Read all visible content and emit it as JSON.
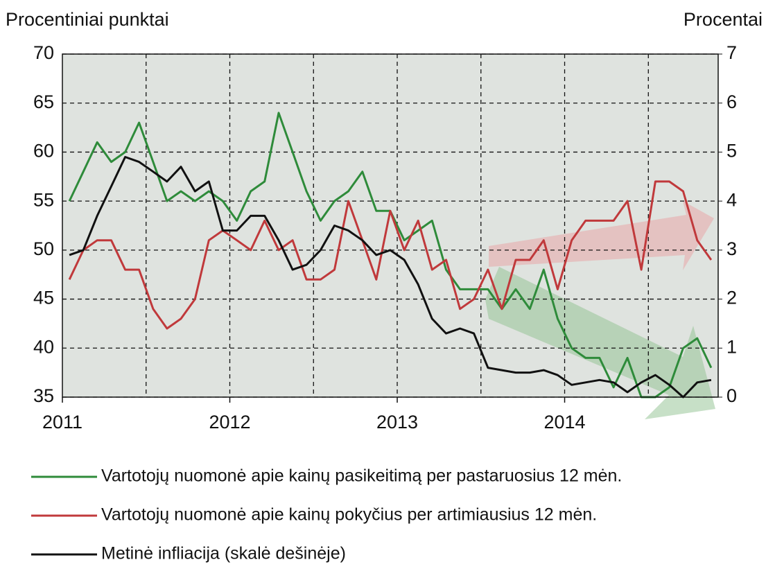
{
  "chart_data": {
    "type": "line",
    "y_label": "Procentiniai punktai",
    "y2_label": "Procentai",
    "x": [
      2011.042,
      2011.125,
      2011.208,
      2011.292,
      2011.375,
      2011.458,
      2011.542,
      2011.625,
      2011.708,
      2011.792,
      2011.875,
      2011.958,
      2012.042,
      2012.125,
      2012.208,
      2012.292,
      2012.375,
      2012.458,
      2012.542,
      2012.625,
      2012.708,
      2012.792,
      2012.875,
      2012.958,
      2013.042,
      2013.125,
      2013.208,
      2013.292,
      2013.375,
      2013.458,
      2013.542,
      2013.625,
      2013.708,
      2013.792,
      2013.875,
      2013.958,
      2014.042,
      2014.125,
      2014.208,
      2014.292,
      2014.375,
      2014.458,
      2014.542,
      2014.625,
      2014.708,
      2014.792,
      2014.875
    ],
    "series": [
      {
        "name": "Vartotojų nuomonė apie kainų pasikeitimą per pastaruosius 12 mėn.",
        "color": "#2e8b3a",
        "values": [
          55,
          58,
          61,
          59,
          60,
          63,
          59,
          55,
          56,
          55,
          56,
          55,
          53,
          56,
          57,
          64,
          60,
          56,
          53,
          55,
          56,
          58,
          54,
          54,
          51,
          52,
          53,
          48,
          46,
          46,
          46,
          44,
          46,
          44,
          48,
          43,
          40,
          39,
          39,
          36,
          39,
          35,
          35,
          36,
          40,
          41,
          38
        ]
      },
      {
        "name": "Vartotojų nuomonė apie kainų pokyčius per artimiausius 12 mėn.",
        "color": "#c0393b",
        "values": [
          47,
          50,
          51,
          51,
          48,
          48,
          44,
          42,
          43,
          45,
          51,
          52,
          51,
          50,
          53,
          50,
          51,
          47,
          47,
          48,
          55,
          51,
          47,
          54,
          50,
          53,
          48,
          49,
          44,
          45,
          48,
          44,
          49,
          49,
          51,
          46,
          51,
          53,
          53,
          53,
          55,
          48,
          57,
          57,
          56,
          51,
          49
        ]
      },
      {
        "name": "Metinė infliacija (skalė dešinėje)",
        "color": "#111111",
        "axis": "y2",
        "values": [
          2.9,
          3.0,
          3.7,
          4.3,
          4.9,
          4.8,
          4.6,
          4.4,
          4.7,
          4.2,
          4.4,
          3.4,
          3.4,
          3.7,
          3.7,
          3.2,
          2.6,
          2.7,
          3.0,
          3.5,
          3.4,
          3.2,
          2.9,
          3.0,
          2.8,
          2.3,
          1.6,
          1.3,
          1.4,
          1.3,
          0.6,
          0.55,
          0.5,
          0.5,
          0.55,
          0.45,
          0.25,
          0.3,
          0.35,
          0.3,
          0.1,
          0.3,
          0.45,
          0.25,
          0.0,
          0.3,
          0.35
        ]
      }
    ],
    "xlim": [
      2011,
      2014.917
    ],
    "xticks": [
      2011,
      2012,
      2013,
      2014
    ],
    "xgrid": [
      2011.5,
      2012,
      2012.5,
      2013,
      2013.5,
      2014,
      2014.5
    ],
    "ylim": [
      35,
      70
    ],
    "yticks": [
      35,
      40,
      45,
      50,
      55,
      60,
      65,
      70
    ],
    "y2lim": [
      0,
      7
    ],
    "y2ticks": [
      0,
      1,
      2,
      3,
      4,
      5,
      6,
      7
    ],
    "grid": true,
    "legend": "bottom"
  }
}
